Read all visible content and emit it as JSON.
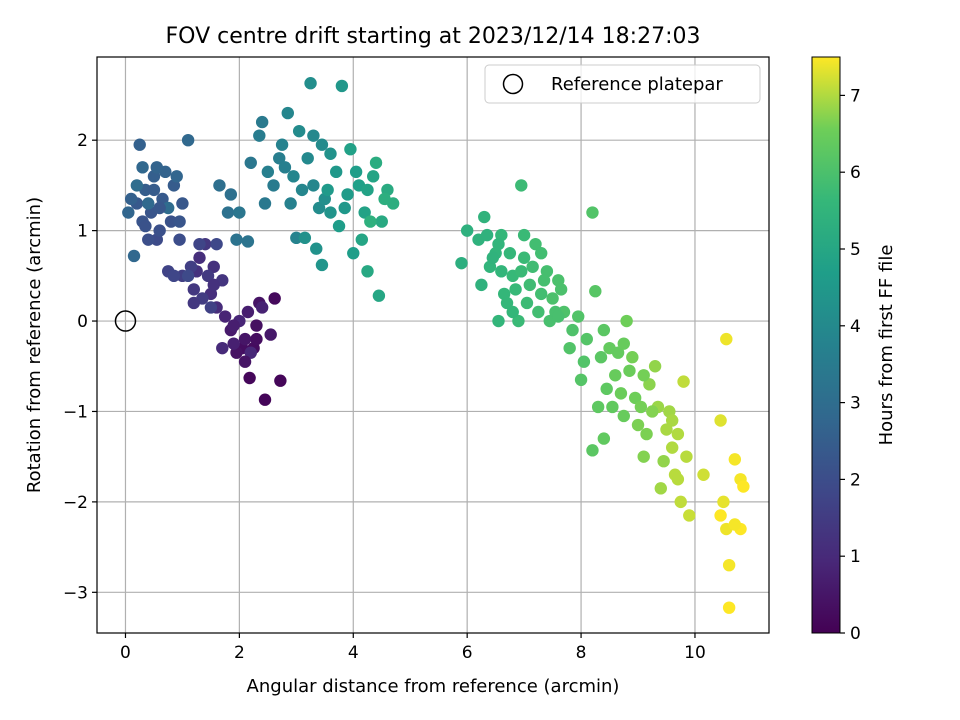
{
  "chart_data": {
    "type": "scatter",
    "title": "FOV centre drift starting at 2023/12/14 18:27:03",
    "xlabel": "Angular distance from reference (arcmin)",
    "ylabel": "Rotation from reference (arcmin)",
    "xlim": [
      -0.5,
      11.3
    ],
    "ylim": [
      -3.45,
      2.92
    ],
    "xticks": [
      0,
      2,
      4,
      6,
      8,
      10
    ],
    "yticks": [
      -3,
      -2,
      -1,
      0,
      1,
      2
    ],
    "xtick_labels": [
      "0",
      "2",
      "4",
      "6",
      "8",
      "10"
    ],
    "ytick_labels": [
      "−3",
      "−2",
      "−1",
      "0",
      "1",
      "2"
    ],
    "grid": true,
    "legend": {
      "position": "top-right",
      "label": "Reference platepar"
    },
    "reference_point": {
      "x": 0,
      "y": 0
    },
    "colorbar": {
      "label": "Hours from first FF file",
      "cmap": "viridis",
      "range": [
        0,
        7.5
      ],
      "ticks": [
        0,
        1,
        2,
        3,
        4,
        5,
        6,
        7
      ],
      "tick_labels": [
        "0",
        "1",
        "2",
        "3",
        "4",
        "5",
        "6",
        "7"
      ]
    },
    "series": [
      {
        "color_by": "hours",
        "points": [
          [
            2.45,
            -0.87,
            0.1
          ],
          [
            2.72,
            -0.66,
            0.12
          ],
          [
            2.18,
            -0.63,
            0.15
          ],
          [
            2.62,
            0.25,
            0.2
          ],
          [
            2.25,
            -0.3,
            0.25
          ],
          [
            2.05,
            -0.3,
            0.3
          ],
          [
            2.3,
            -0.05,
            0.35
          ],
          [
            1.95,
            -0.35,
            0.4
          ],
          [
            2.35,
            0.2,
            0.45
          ],
          [
            2.1,
            -0.2,
            0.5
          ],
          [
            2.55,
            -0.15,
            0.55
          ],
          [
            1.85,
            -0.1,
            0.6
          ],
          [
            2.15,
            0.1,
            0.7
          ],
          [
            1.9,
            -0.25,
            0.75
          ],
          [
            2.4,
            0.15,
            0.8
          ],
          [
            1.75,
            0.05,
            0.85
          ],
          [
            2.0,
            0.0,
            0.9
          ],
          [
            2.2,
            -0.35,
            0.95
          ],
          [
            1.7,
            -0.3,
            1.0
          ],
          [
            1.6,
            0.15,
            1.05
          ],
          [
            1.3,
            0.7,
            1.1
          ],
          [
            1.5,
            0.3,
            1.15
          ],
          [
            1.55,
            0.6,
            1.2
          ],
          [
            1.25,
            0.55,
            1.25
          ],
          [
            1.7,
            0.45,
            1.3
          ],
          [
            1.4,
            0.85,
            1.35
          ],
          [
            1.2,
            0.35,
            1.4
          ],
          [
            1.45,
            0.5,
            1.45
          ],
          [
            1.35,
            0.25,
            1.5
          ],
          [
            1.0,
            0.5,
            1.55
          ],
          [
            1.15,
            0.6,
            1.6
          ],
          [
            1.5,
            0.15,
            1.65
          ],
          [
            0.75,
            0.55,
            1.7
          ],
          [
            1.3,
            0.85,
            1.75
          ],
          [
            0.85,
            0.5,
            1.8
          ],
          [
            1.6,
            0.85,
            1.85
          ],
          [
            1.1,
            0.5,
            1.9
          ],
          [
            0.55,
            0.9,
            1.95
          ],
          [
            0.95,
            0.9,
            2.0
          ],
          [
            0.4,
            0.9,
            2.05
          ],
          [
            0.6,
            1.0,
            2.1
          ],
          [
            0.8,
            1.1,
            2.15
          ],
          [
            0.3,
            1.1,
            2.2
          ],
          [
            0.45,
            1.2,
            2.25
          ],
          [
            1.0,
            1.3,
            2.3
          ],
          [
            0.2,
            1.3,
            2.35
          ],
          [
            0.65,
            1.35,
            2.4
          ],
          [
            0.85,
            1.5,
            2.45
          ],
          [
            0.35,
            1.45,
            2.5
          ],
          [
            0.5,
            1.6,
            2.55
          ],
          [
            0.1,
            1.35,
            2.6
          ],
          [
            0.25,
            1.95,
            2.6
          ],
          [
            0.7,
            1.65,
            2.65
          ],
          [
            0.55,
            1.7,
            2.7
          ],
          [
            0.05,
            1.2,
            2.75
          ],
          [
            0.9,
            1.6,
            2.75
          ],
          [
            0.3,
            1.7,
            2.8
          ],
          [
            0.15,
            0.72,
            2.8
          ],
          [
            1.1,
            2.0,
            2.85
          ],
          [
            0.4,
            1.3,
            2.9
          ],
          [
            0.75,
            1.25,
            2.95
          ],
          [
            0.2,
            1.5,
            3.0
          ],
          [
            1.65,
            1.5,
            3.05
          ],
          [
            1.85,
            1.4,
            3.1
          ],
          [
            1.8,
            1.2,
            3.15
          ],
          [
            1.95,
            0.9,
            3.2
          ],
          [
            2.15,
            0.88,
            3.25
          ],
          [
            2.0,
            1.2,
            3.3
          ],
          [
            2.2,
            1.75,
            3.35
          ],
          [
            2.45,
            1.3,
            3.4
          ],
          [
            2.4,
            2.2,
            3.45
          ],
          [
            2.6,
            1.5,
            3.5
          ],
          [
            2.35,
            2.05,
            3.55
          ],
          [
            2.7,
            1.8,
            3.6
          ],
          [
            2.5,
            1.65,
            3.65
          ],
          [
            2.9,
            1.3,
            3.7
          ],
          [
            2.75,
            1.95,
            3.75
          ],
          [
            3.0,
            0.92,
            3.8
          ],
          [
            2.95,
            1.6,
            3.85
          ],
          [
            3.1,
            1.45,
            3.9
          ],
          [
            2.85,
            2.3,
            3.9
          ],
          [
            3.3,
            2.05,
            3.95
          ],
          [
            3.2,
            1.8,
            4.0
          ],
          [
            3.05,
            2.1,
            4.05
          ],
          [
            3.4,
            1.25,
            4.1
          ],
          [
            3.25,
            2.63,
            4.15
          ],
          [
            3.5,
            1.35,
            4.2
          ],
          [
            3.15,
            0.92,
            4.25
          ],
          [
            3.35,
            0.8,
            4.3
          ],
          [
            3.6,
            1.2,
            4.35
          ],
          [
            3.45,
            0.62,
            4.4
          ],
          [
            3.8,
            2.6,
            4.45
          ],
          [
            3.7,
            1.65,
            4.5
          ],
          [
            3.55,
            1.45,
            4.55
          ],
          [
            3.9,
            1.4,
            4.6
          ],
          [
            3.75,
            1.05,
            4.65
          ],
          [
            4.0,
            0.75,
            4.7
          ],
          [
            4.1,
            1.5,
            4.75
          ],
          [
            3.95,
            1.9,
            4.8
          ],
          [
            4.2,
            1.2,
            4.85
          ],
          [
            4.35,
            1.6,
            4.9
          ],
          [
            4.15,
            0.9,
            4.95
          ],
          [
            4.45,
            0.28,
            5.0
          ],
          [
            4.25,
            0.55,
            5.05
          ],
          [
            4.5,
            1.1,
            5.1
          ],
          [
            4.6,
            1.45,
            5.15
          ],
          [
            4.4,
            1.75,
            5.2
          ],
          [
            4.7,
            1.3,
            5.25
          ],
          [
            4.55,
            1.35,
            5.3
          ],
          [
            4.3,
            1.1,
            5.35
          ],
          [
            5.9,
            0.64,
            5.3
          ],
          [
            6.0,
            1.0,
            5.35
          ],
          [
            6.2,
            0.9,
            5.4
          ],
          [
            6.3,
            1.15,
            5.45
          ],
          [
            6.5,
            0.75,
            5.5
          ],
          [
            6.4,
            0.6,
            5.5
          ],
          [
            6.55,
            0.0,
            5.55
          ],
          [
            6.7,
            0.2,
            5.6
          ],
          [
            6.6,
            0.95,
            5.6
          ],
          [
            6.8,
            0.5,
            5.65
          ],
          [
            6.9,
            0.0,
            5.7
          ],
          [
            7.0,
            0.7,
            5.7
          ],
          [
            6.95,
            1.5,
            5.75
          ],
          [
            7.1,
            0.4,
            5.8
          ],
          [
            7.2,
            0.85,
            5.85
          ],
          [
            7.3,
            0.3,
            5.85
          ],
          [
            7.4,
            0.55,
            5.9
          ],
          [
            7.45,
            0.0,
            5.95
          ],
          [
            7.6,
            0.45,
            6.0
          ],
          [
            7.5,
            0.25,
            6.0
          ],
          [
            7.7,
            0.1,
            6.05
          ],
          [
            7.8,
            -0.3,
            6.1
          ],
          [
            8.0,
            -0.65,
            6.15
          ],
          [
            8.2,
            1.2,
            6.1
          ],
          [
            8.25,
            0.33,
            6.2
          ],
          [
            8.2,
            -1.43,
            6.25
          ],
          [
            8.3,
            -0.95,
            6.3
          ],
          [
            8.4,
            -1.3,
            6.35
          ],
          [
            8.5,
            -0.3,
            6.4
          ],
          [
            8.6,
            -0.6,
            6.45
          ],
          [
            8.7,
            -0.8,
            6.5
          ],
          [
            8.8,
            0.0,
            6.55
          ],
          [
            8.9,
            -0.4,
            6.6
          ],
          [
            9.0,
            -1.15,
            6.65
          ],
          [
            9.1,
            -1.5,
            6.7
          ],
          [
            9.2,
            -0.7,
            6.75
          ],
          [
            9.3,
            -0.5,
            6.8
          ],
          [
            9.35,
            -0.95,
            6.85
          ],
          [
            9.4,
            -1.85,
            6.9
          ],
          [
            9.5,
            -1.2,
            6.95
          ],
          [
            9.6,
            -1.4,
            7.0
          ],
          [
            9.65,
            -1.7,
            7.05
          ],
          [
            9.75,
            -2.0,
            7.1
          ],
          [
            9.8,
            -0.67,
            7.1
          ],
          [
            9.9,
            -2.15,
            7.15
          ],
          [
            10.15,
            -1.7,
            7.2
          ],
          [
            10.45,
            -1.1,
            7.3
          ],
          [
            10.5,
            -2.0,
            7.35
          ],
          [
            10.55,
            -0.2,
            7.4
          ],
          [
            10.55,
            -2.3,
            7.4
          ],
          [
            10.6,
            -2.7,
            7.45
          ],
          [
            10.6,
            -3.17,
            7.5
          ],
          [
            10.7,
            -1.53,
            7.45
          ],
          [
            10.8,
            -1.75,
            7.45
          ],
          [
            10.8,
            -2.3,
            7.5
          ],
          [
            10.85,
            -1.83,
            7.5
          ],
          [
            10.45,
            -2.15,
            7.5
          ],
          [
            10.7,
            -2.25,
            7.45
          ],
          [
            6.35,
            0.95,
            5.4
          ],
          [
            6.45,
            0.7,
            5.45
          ],
          [
            6.6,
            0.55,
            5.55
          ],
          [
            6.75,
            0.75,
            5.6
          ],
          [
            6.85,
            0.35,
            5.65
          ],
          [
            6.65,
            0.3,
            5.6
          ],
          [
            6.95,
            0.55,
            5.7
          ],
          [
            7.05,
            0.2,
            5.75
          ],
          [
            7.15,
            0.6,
            5.8
          ],
          [
            7.25,
            0.1,
            5.85
          ],
          [
            7.35,
            0.45,
            5.9
          ],
          [
            7.55,
            0.1,
            5.95
          ],
          [
            7.65,
            0.35,
            6.0
          ],
          [
            7.85,
            -0.1,
            6.05
          ],
          [
            7.95,
            0.05,
            6.1
          ],
          [
            8.1,
            -0.2,
            6.15
          ],
          [
            8.35,
            -0.4,
            6.25
          ],
          [
            8.45,
            -0.75,
            6.3
          ],
          [
            8.55,
            -0.95,
            6.35
          ],
          [
            8.65,
            -0.35,
            6.4
          ],
          [
            8.75,
            -1.05,
            6.45
          ],
          [
            8.85,
            -0.55,
            6.5
          ],
          [
            8.95,
            -0.85,
            6.55
          ],
          [
            9.05,
            -0.95,
            6.6
          ],
          [
            9.15,
            -1.25,
            6.65
          ],
          [
            9.25,
            -1.0,
            6.7
          ],
          [
            9.45,
            -1.55,
            6.8
          ],
          [
            9.55,
            -1.0,
            6.9
          ],
          [
            9.7,
            -1.25,
            7.0
          ],
          [
            9.85,
            -1.5,
            7.05
          ],
          [
            6.25,
            0.4,
            5.4
          ],
          [
            6.55,
            0.85,
            5.5
          ],
          [
            6.8,
            0.1,
            5.6
          ],
          [
            7.0,
            0.95,
            5.7
          ],
          [
            7.3,
            0.75,
            5.85
          ],
          [
            7.6,
            0.05,
            5.95
          ],
          [
            8.05,
            -0.45,
            6.1
          ],
          [
            8.4,
            -0.1,
            6.25
          ],
          [
            8.75,
            -0.25,
            6.45
          ],
          [
            9.1,
            -0.6,
            6.6
          ],
          [
            9.6,
            -1.1,
            6.95
          ],
          [
            9.7,
            -1.75,
            7.05
          ],
          [
            3.3,
            1.5,
            3.9
          ],
          [
            3.6,
            1.85,
            4.3
          ],
          [
            4.05,
            1.65,
            4.7
          ],
          [
            2.8,
            1.7,
            3.65
          ],
          [
            3.45,
            1.95,
            4.05
          ],
          [
            3.85,
            1.25,
            4.5
          ],
          [
            4.25,
            1.45,
            4.85
          ],
          [
            0.6,
            1.25,
            2.3
          ],
          [
            0.35,
            1.05,
            2.15
          ],
          [
            0.5,
            1.45,
            2.45
          ],
          [
            0.95,
            1.1,
            2.25
          ],
          [
            1.2,
            0.2,
            1.4
          ],
          [
            1.55,
            0.4,
            1.2
          ],
          [
            1.9,
            -0.05,
            0.7
          ],
          [
            2.1,
            -0.45,
            0.45
          ],
          [
            2.3,
            -0.2,
            0.3
          ]
        ]
      }
    ]
  }
}
